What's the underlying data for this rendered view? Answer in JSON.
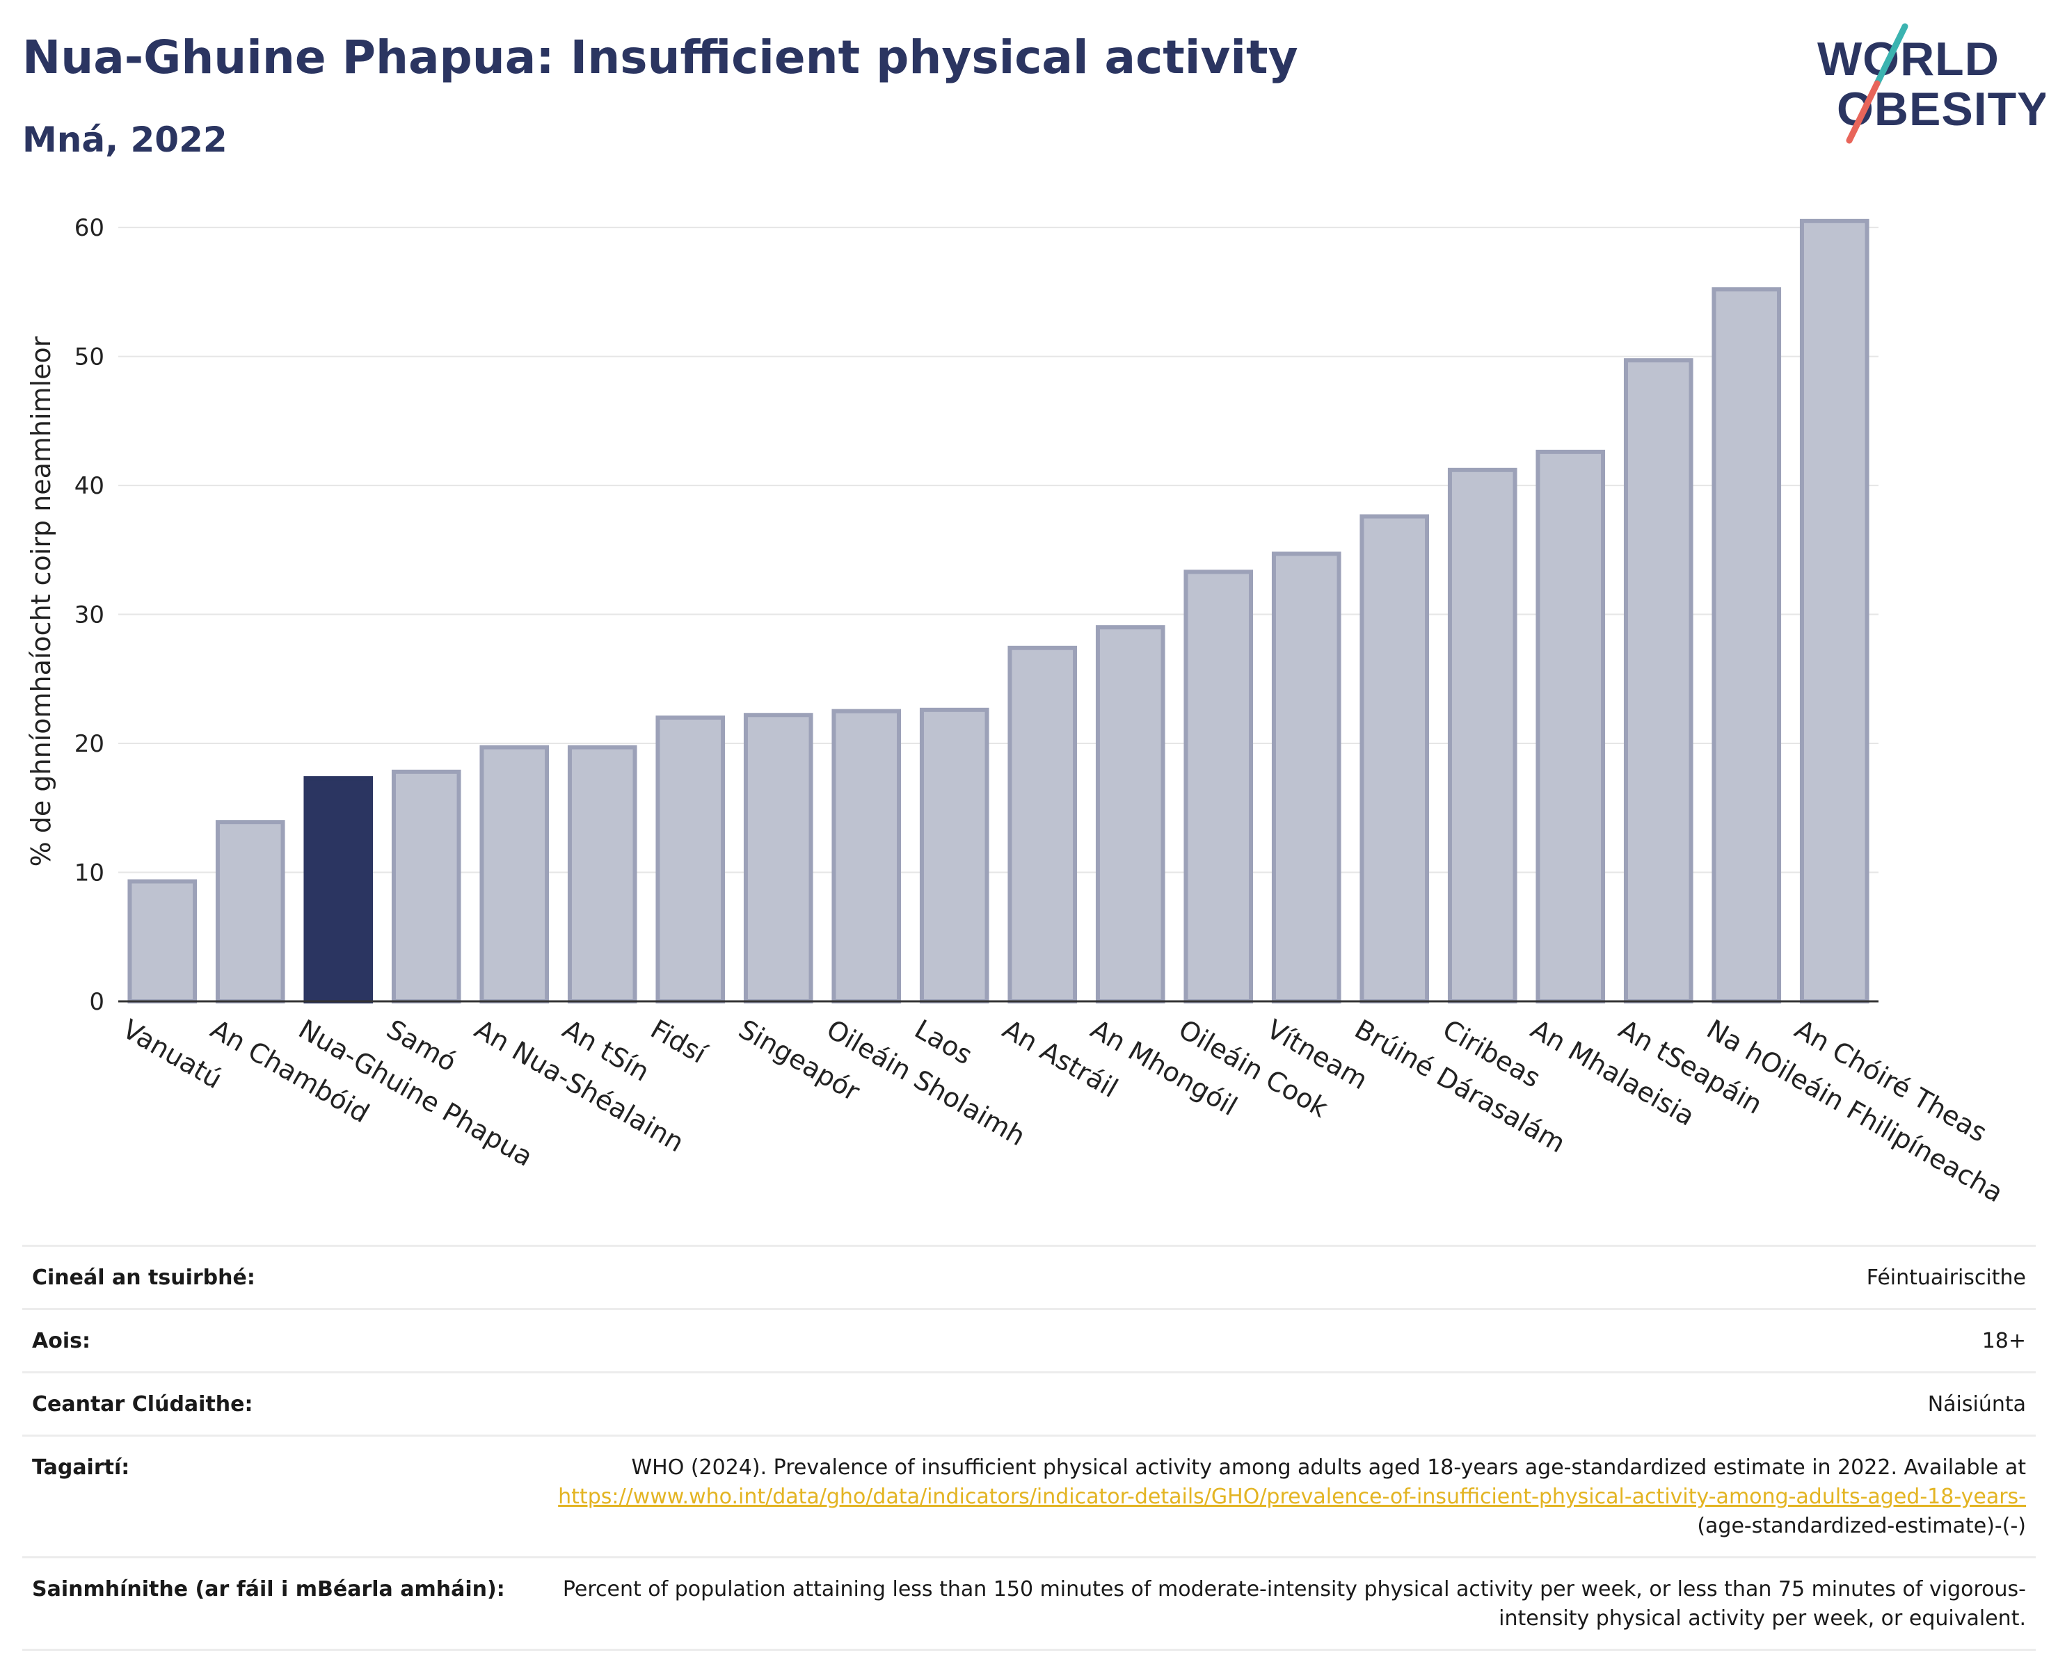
{
  "header": {
    "title": "Nua-Ghuine Phapua: Insufficient physical activity",
    "subtitle": "Mná, 2022"
  },
  "logo": {
    "line1": "WORLD",
    "line2": "OBESITY",
    "colors": {
      "text": "#2b3561",
      "slash_teal": "#3bb3b0",
      "slash_coral": "#e8655a"
    }
  },
  "colors": {
    "bar": "#bec2d0",
    "bar_border": "#9ca1b8",
    "highlight": "#2b3561",
    "axis": "#333333",
    "grid": "#e6e6e6",
    "link": "#e3b422"
  },
  "chart_data": {
    "type": "bar",
    "ylabel": "% de ghníomhaíocht coirp neamhimleor",
    "xlabel": "",
    "ylim": [
      0,
      62
    ],
    "yticks": [
      0,
      10,
      20,
      30,
      40,
      50,
      60
    ],
    "grid": true,
    "highlight": "Nua-Ghuine Phapua",
    "categories": [
      "Vanuatú",
      "An Chambóid",
      "Nua-Ghuine Phapua",
      "Samó",
      "An Nua-Shéalainn",
      "An tSín",
      "Fidsí",
      "Singeapór",
      "Oileáin Sholaimh",
      "Laos",
      "An Astráil",
      "An Mhongóil",
      "Oileáin Cook",
      "Vítneam",
      "Brúiné Dárasalám",
      "Ciribeas",
      "An Mhalaeisia",
      "An tSeapáin",
      "Na hOileáin Fhilipíneacha",
      "An Chóiré Theas"
    ],
    "values": [
      9.3,
      13.9,
      17.3,
      17.8,
      19.7,
      19.7,
      22.0,
      22.2,
      22.5,
      22.6,
      27.4,
      29.0,
      33.3,
      34.7,
      37.6,
      41.2,
      42.6,
      49.7,
      55.2,
      60.5
    ]
  },
  "meta": [
    {
      "label": "Cineál an tsuirbhé:",
      "value": "Féintuairiscithe"
    },
    {
      "label": "Aois:",
      "value": "18+"
    },
    {
      "label": "Ceantar Clúdaithe:",
      "value": "Náisiúnta"
    }
  ],
  "references": {
    "label": "Tagairtí:",
    "text": "WHO (2024). Prevalence of insufficient physical activity among adults aged 18-years age-standardized estimate in 2022. Available at",
    "link": "https://www.who.int/data/gho/data/indicators/indicator-details/GHO/prevalence-of-insufficient-physical-activity-among-adults-aged-18-years-",
    "suffix": "(age-standardized-estimate)-(-)"
  },
  "definitions": {
    "label": "Sainmhínithe (ar fáil i mBéarla amháin):",
    "value": "Percent of population attaining less than 150 minutes of moderate-intensity physical activity per week, or less than 75 minutes of vigorous-intensity physical activity per week, or equivalent."
  }
}
